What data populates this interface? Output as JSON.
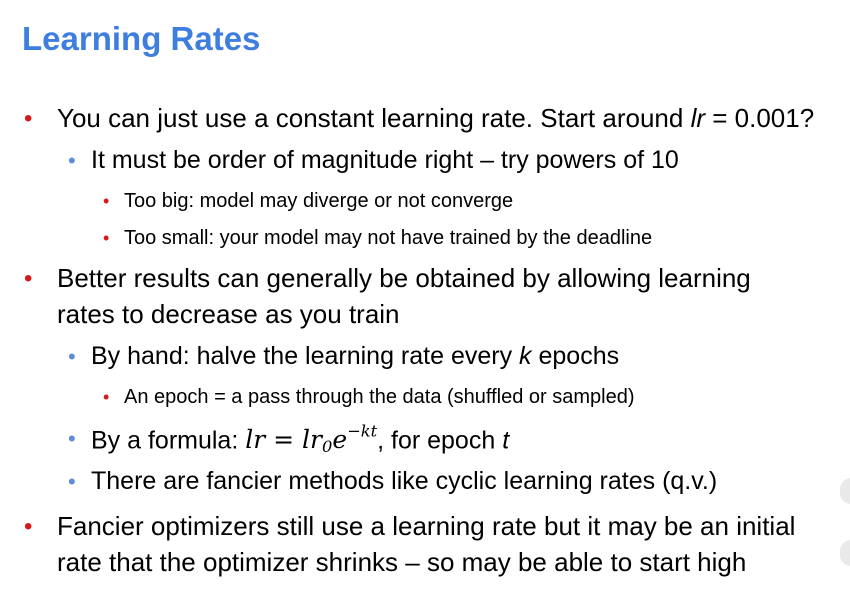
{
  "title": "Learning Rates",
  "bullets": {
    "b1": {
      "before": "You can just use a constant learning rate. Start around ",
      "var": "lr",
      "after": " = 0.001?"
    },
    "b1_1": "It must be order of magnitude right – try powers of 10",
    "b1_1_1": "Too big: model may diverge or not converge",
    "b1_1_2": "Too small: your model may not have trained by the deadline",
    "b2_line1": "Better results can generally be obtained by allowing learning",
    "b2_line2": "rates to decrease as you train",
    "b2_1": {
      "before": "By hand: halve the learning rate every ",
      "var": "k",
      "after": " epochs"
    },
    "b2_1_1": "An epoch = a pass through the data (shuffled or sampled)",
    "b2_2": {
      "before": "By a formula: ",
      "lhs": "lr = lr",
      "sub": "0",
      "base": "e",
      "exp": "−kt",
      "middle": ", for epoch ",
      "var": "t"
    },
    "b2_3": "There are fancier methods like cyclic learning rates (q.v.)",
    "b3_line1": "Fancier optimizers still use a learning rate but it may be an initial",
    "b3_line2": "rate that the optimizer shrinks – so may be able to start high"
  },
  "colors": {
    "title": "#3d7ee0",
    "level1_bullet": "#d11a1a",
    "level2_bullet": "#5b8ed6",
    "level3_bullet": "#d11a1a"
  },
  "icons": {
    "level1": "bullet-dot-icon",
    "level2": "bullet-dot-icon",
    "level3": "bullet-dot-icon"
  }
}
